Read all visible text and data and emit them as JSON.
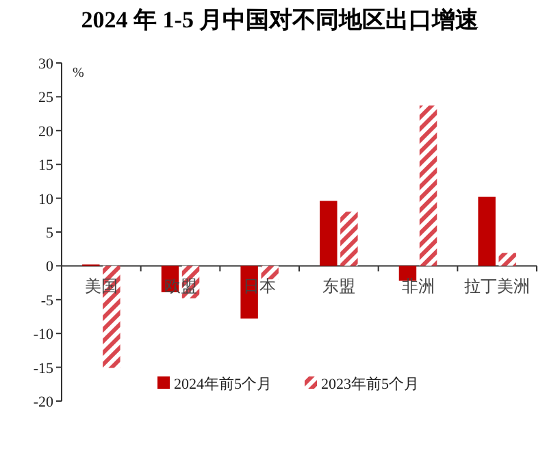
{
  "chart_data": {
    "type": "bar",
    "title": "2024 年 1-5 月中国对不同地区出口增速",
    "ylabel": "%",
    "categories": [
      "美国",
      "欧盟",
      "日本",
      "东盟",
      "非洲",
      "拉丁美洲"
    ],
    "series": [
      {
        "name": "2024年前5个月",
        "color": "#c00000",
        "values": [
          0.2,
          -3.9,
          -7.8,
          9.6,
          -2.2,
          10.2
        ]
      },
      {
        "name": "2023年前5个月",
        "color": "#d9474f",
        "values": [
          -15.1,
          -4.8,
          -2.0,
          8.0,
          23.7,
          1.9
        ]
      }
    ],
    "ylim": [
      -20,
      30
    ],
    "yticks": [
      -20,
      -15,
      -10,
      -5,
      0,
      5,
      10,
      15,
      20,
      25,
      30
    ],
    "grid": false,
    "legend": "bottom"
  }
}
